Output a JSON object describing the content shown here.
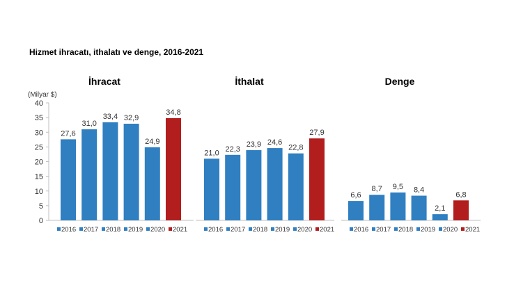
{
  "title": "Hizmet ihracatı, ithalatı ve denge, 2016-2021",
  "colors": {
    "bar": "#2f7fc1",
    "highlight": "#b21d1d"
  },
  "chart_data": [
    {
      "type": "bar",
      "title": "İhracat",
      "ylabel": "(Milyar $)",
      "ylim": [
        0,
        40
      ],
      "yticks": [
        "0",
        "5",
        "10",
        "15",
        "20",
        "25",
        "30",
        "35",
        "40"
      ],
      "categories": [
        "2016",
        "2017",
        "2018",
        "2019",
        "2020",
        "2021"
      ],
      "values": [
        27.6,
        31.0,
        33.4,
        32.9,
        24.9,
        34.8
      ],
      "labels": [
        "27,6",
        "31,0",
        "33,4",
        "32,9",
        "24,9",
        "34,8"
      ],
      "legend": "bottom"
    },
    {
      "type": "bar",
      "title": "İthalat",
      "ylim": [
        0,
        40
      ],
      "categories": [
        "2016",
        "2017",
        "2018",
        "2019",
        "2020",
        "2021"
      ],
      "values": [
        21.0,
        22.3,
        23.9,
        24.6,
        22.8,
        27.9
      ],
      "labels": [
        "21,0",
        "22,3",
        "23,9",
        "24,6",
        "22,8",
        "27,9"
      ],
      "legend": "bottom"
    },
    {
      "type": "bar",
      "title": "Denge",
      "ylim": [
        0,
        40
      ],
      "categories": [
        "2016",
        "2017",
        "2018",
        "2019",
        "2020",
        "2021"
      ],
      "values": [
        6.6,
        8.7,
        9.5,
        8.4,
        2.1,
        6.8
      ],
      "labels": [
        "6,6",
        "8,7",
        "9,5",
        "8,4",
        "2,1",
        "6,8"
      ],
      "legend": "bottom"
    }
  ]
}
